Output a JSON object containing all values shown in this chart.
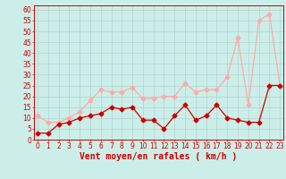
{
  "x": [
    0,
    1,
    2,
    3,
    4,
    5,
    6,
    7,
    8,
    9,
    10,
    11,
    12,
    13,
    14,
    15,
    16,
    17,
    18,
    19,
    20,
    21,
    22,
    23
  ],
  "wind_avg": [
    3,
    3,
    7,
    8,
    10,
    11,
    12,
    15,
    14,
    15,
    9,
    9,
    5,
    11,
    16,
    9,
    11,
    16,
    10,
    9,
    8,
    8,
    25,
    25
  ],
  "wind_gust": [
    11,
    8,
    8,
    10,
    13,
    18,
    23,
    22,
    22,
    24,
    19,
    19,
    20,
    20,
    26,
    22,
    23,
    23,
    29,
    47,
    16,
    55,
    58,
    25
  ],
  "avg_color": "#cc0000",
  "gust_color": "#ffaaaa",
  "bg_color": "#cceee8",
  "grid_color": "#aacccc",
  "xlabel": "Vent moyen/en rafales ( km/h )",
  "xlabel_color": "#cc0000",
  "ylim": [
    0,
    62
  ],
  "yticks": [
    0,
    5,
    10,
    15,
    20,
    25,
    30,
    35,
    40,
    45,
    50,
    55,
    60
  ],
  "xticks": [
    0,
    1,
    2,
    3,
    4,
    5,
    6,
    7,
    8,
    9,
    10,
    11,
    12,
    13,
    14,
    15,
    16,
    17,
    18,
    19,
    20,
    21,
    22,
    23
  ],
  "axis_color": "#cc0000",
  "tick_fontsize": 5.5,
  "label_fontsize": 7,
  "marker_size": 2.5,
  "line_width": 0.9
}
